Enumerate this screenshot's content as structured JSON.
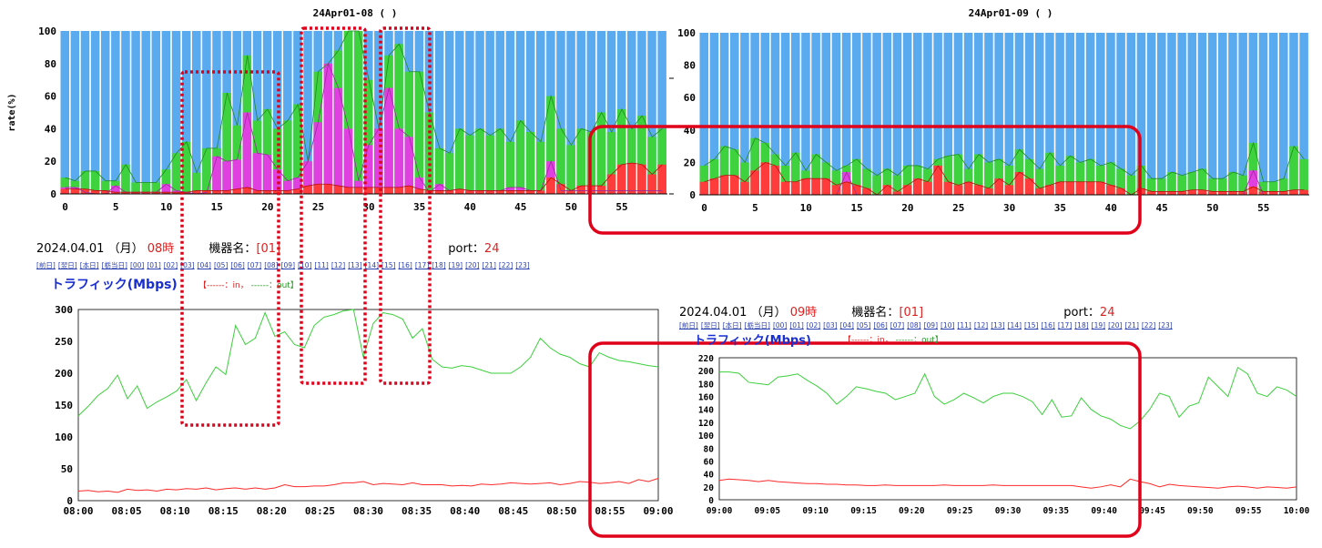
{
  "colors": {
    "in": "#ff3b3b",
    "out": "#3fd23f",
    "mid": "#e040e0",
    "rest": "#5aaaf0",
    "highlight": "#e0001a",
    "label_red": "#e02020"
  },
  "panels": [
    {
      "title": "24Apr01-08 (                )",
      "date": "2024.04.01",
      "weekday": "（月）",
      "hour": "08時",
      "device_label": "機器名：",
      "device": "[01]",
      "port_label": "port：",
      "port": "24",
      "traffic_label": "トラフィック(Mbps)",
      "legend_in": "【------：in，",
      "legend_out": "------：out】",
      "nav": [
        "[前日]",
        "[翌日]",
        "[本日]",
        "[栃当日]",
        "[00]",
        "[01]",
        "[02]",
        "[03]",
        "[04]",
        "[05]",
        "[06]",
        "[07]",
        "[08]",
        "[09]",
        "[10]",
        "[11]",
        "[12]",
        "[13]",
        "[14]",
        "[15]",
        "[16]",
        "[17]",
        "[18]",
        "[19]",
        "[20]",
        "[21]",
        "[22]",
        "[23]"
      ]
    },
    {
      "title": "24Apr01-09 (                )",
      "date": "2024.04.01",
      "weekday": "（月）",
      "hour": "09時",
      "device_label": "機器名：",
      "device": "[01]",
      "port_label": "port：",
      "port": "24",
      "traffic_label": "トラフィック(Mbps)",
      "legend_in": "【------：in，",
      "legend_out": "------：out】",
      "nav": [
        "[前日]",
        "[翌日]",
        "[本日]",
        "[栃当日]",
        "[00]",
        "[01]",
        "[02]",
        "[03]",
        "[04]",
        "[05]",
        "[06]",
        "[07]",
        "[08]",
        "[09]",
        "[10]",
        "[11]",
        "[12]",
        "[13]",
        "[14]",
        "[15]",
        "[16]",
        "[17]",
        "[18]",
        "[19]",
        "[20]",
        "[21]",
        "[22]",
        "[23]"
      ]
    }
  ],
  "chart_data": [
    {
      "type": "bar",
      "title": "24Apr01-08 (                )",
      "ylabel": "rate(%)",
      "ylim": [
        0,
        100
      ],
      "yticks": [
        "0",
        "20",
        "40",
        "60",
        "80",
        "100"
      ],
      "xticks": [
        "0",
        "5",
        "10",
        "15",
        "20",
        "25",
        "30",
        "35",
        "40",
        "45",
        "50",
        "55"
      ],
      "series": [
        {
          "name": "in",
          "values": [
            3,
            3,
            3,
            2,
            2,
            1,
            1,
            1,
            1,
            1,
            1,
            1,
            1,
            2,
            2,
            2,
            2,
            3,
            4,
            2,
            2,
            2,
            2,
            3,
            5,
            6,
            6,
            5,
            4,
            4,
            4,
            4,
            4,
            4,
            5,
            3,
            2,
            2,
            2,
            3,
            2,
            2,
            2,
            2,
            2,
            2,
            2,
            2,
            10,
            6,
            2,
            5,
            5,
            5,
            12,
            18,
            19,
            18,
            12,
            18
          ]
        },
        {
          "name": "mid",
          "values": [
            4,
            4,
            1,
            0,
            0,
            5,
            1,
            1,
            1,
            1,
            6,
            2,
            1,
            0,
            1,
            23,
            20,
            21,
            50,
            25,
            24,
            15,
            8,
            10,
            30,
            44,
            85,
            65,
            40,
            8,
            30,
            40,
            65,
            40,
            35,
            10,
            1,
            6,
            2,
            3,
            2,
            2,
            2,
            2,
            4,
            4,
            2,
            2,
            20,
            2,
            2,
            2,
            2,
            2,
            2,
            2,
            2,
            2,
            2,
            2
          ]
        },
        {
          "name": "out",
          "values": [
            10,
            8,
            14,
            14,
            8,
            8,
            18,
            7,
            7,
            7,
            15,
            25,
            32,
            13,
            28,
            28,
            62,
            42,
            85,
            45,
            52,
            40,
            45,
            55,
            20,
            75,
            80,
            88,
            100,
            100,
            70,
            40,
            85,
            92,
            75,
            75,
            50,
            28,
            25,
            40,
            36,
            40,
            36,
            40,
            32,
            45,
            38,
            32,
            60,
            40,
            30,
            40,
            38,
            50,
            38,
            52,
            40,
            48,
            35,
            40
          ]
        }
      ]
    },
    {
      "type": "bar",
      "title": "24Apr01-09 (                )",
      "ylabel": "",
      "ylim": [
        0,
        100
      ],
      "yticks": [
        "0",
        "20",
        "40",
        "60",
        "80",
        "100"
      ],
      "xticks": [
        "0",
        "5",
        "10",
        "15",
        "20",
        "25",
        "30",
        "35",
        "40",
        "45",
        "50",
        "55"
      ],
      "series": [
        {
          "name": "in",
          "values": [
            8,
            10,
            12,
            12,
            8,
            15,
            20,
            18,
            8,
            8,
            10,
            10,
            10,
            6,
            8,
            6,
            4,
            0,
            6,
            2,
            6,
            10,
            8,
            18,
            8,
            6,
            8,
            6,
            4,
            10,
            6,
            14,
            10,
            4,
            6,
            8,
            8,
            8,
            8,
            8,
            6,
            4,
            0,
            4,
            2,
            2,
            2,
            2,
            3,
            3,
            2,
            2,
            2,
            2,
            5,
            2,
            2,
            2,
            3,
            3
          ]
        },
        {
          "name": "mid",
          "values": [
            0,
            0,
            0,
            0,
            0,
            0,
            0,
            0,
            0,
            0,
            0,
            0,
            0,
            0,
            14,
            0,
            0,
            0,
            0,
            0,
            0,
            0,
            0,
            0,
            0,
            0,
            0,
            0,
            0,
            0,
            0,
            0,
            0,
            0,
            0,
            0,
            0,
            0,
            0,
            0,
            0,
            0,
            0,
            0,
            0,
            0,
            0,
            0,
            0,
            0,
            0,
            0,
            0,
            0,
            15,
            0,
            0,
            0,
            0,
            0
          ]
        },
        {
          "name": "out",
          "values": [
            18,
            22,
            30,
            28,
            20,
            35,
            32,
            25,
            18,
            26,
            15,
            25,
            20,
            15,
            18,
            22,
            16,
            12,
            16,
            12,
            18,
            18,
            16,
            22,
            24,
            25,
            16,
            25,
            20,
            22,
            18,
            28,
            22,
            16,
            26,
            18,
            24,
            20,
            22,
            18,
            20,
            16,
            12,
            18,
            10,
            10,
            14,
            12,
            14,
            16,
            10,
            10,
            14,
            12,
            32,
            8,
            8,
            10,
            30,
            22
          ]
        }
      ]
    },
    {
      "type": "line",
      "title": "",
      "ylabel": "",
      "ylim": [
        0,
        300
      ],
      "yticks": [
        "0",
        "50",
        "100",
        "150",
        "200",
        "250",
        "300"
      ],
      "xticks": [
        "08:00",
        "08:05",
        "08:10",
        "08:15",
        "08:20",
        "08:25",
        "08:30",
        "08:35",
        "08:40",
        "08:45",
        "08:50",
        "08:55",
        "09:00"
      ],
      "series": [
        {
          "name": "in",
          "values": [
            15,
            16,
            14,
            15,
            13,
            18,
            16,
            17,
            15,
            18,
            17,
            19,
            18,
            20,
            17,
            19,
            20,
            18,
            20,
            18,
            20,
            25,
            22,
            22,
            23,
            23,
            25,
            28,
            28,
            30,
            25,
            27,
            26,
            25,
            28,
            25,
            25,
            25,
            23,
            24,
            23,
            26,
            25,
            26,
            28,
            27,
            26,
            27,
            28,
            25,
            27,
            30,
            29,
            27,
            28,
            30,
            27,
            33,
            30,
            35
          ]
        },
        {
          "name": "out",
          "values": [
            133,
            148,
            165,
            176,
            197,
            160,
            180,
            145,
            155,
            163,
            172,
            190,
            157,
            185,
            210,
            198,
            275,
            245,
            255,
            295,
            258,
            265,
            245,
            240,
            275,
            288,
            292,
            298,
            300,
            225,
            278,
            295,
            292,
            285,
            255,
            270,
            222,
            210,
            208,
            212,
            210,
            205,
            200,
            200,
            200,
            210,
            225,
            255,
            240,
            230,
            225,
            215,
            210,
            232,
            225,
            220,
            218,
            215,
            212,
            210
          ]
        }
      ]
    },
    {
      "type": "line",
      "title": "",
      "ylabel": "",
      "ylim": [
        0,
        220
      ],
      "yticks": [
        "0",
        "20",
        "40",
        "60",
        "80",
        "100",
        "120",
        "140",
        "160",
        "180",
        "200",
        "220"
      ],
      "xticks": [
        "09:00",
        "09:05",
        "09:10",
        "09:15",
        "09:20",
        "09:25",
        "09:30",
        "09:35",
        "09:40",
        "09:45",
        "09:50",
        "09:55",
        "10:00"
      ],
      "series": [
        {
          "name": "in",
          "values": [
            30,
            32,
            31,
            30,
            28,
            30,
            28,
            27,
            26,
            25,
            25,
            24,
            24,
            23,
            23,
            22,
            22,
            23,
            22,
            22,
            22,
            22,
            22,
            23,
            22,
            22,
            22,
            22,
            23,
            22,
            22,
            22,
            22,
            22,
            22,
            22,
            22,
            20,
            18,
            20,
            23,
            20,
            32,
            28,
            25,
            20,
            24,
            22,
            21,
            20,
            19,
            18,
            20,
            21,
            20,
            18,
            20,
            19,
            18,
            20
          ]
        },
        {
          "name": "out",
          "values": [
            198,
            198,
            196,
            182,
            180,
            178,
            190,
            192,
            195,
            185,
            176,
            165,
            148,
            160,
            175,
            172,
            168,
            165,
            155,
            160,
            165,
            195,
            160,
            148,
            155,
            165,
            158,
            150,
            160,
            165,
            165,
            160,
            152,
            132,
            155,
            128,
            130,
            158,
            140,
            130,
            125,
            115,
            110,
            122,
            140,
            165,
            160,
            128,
            145,
            150,
            190,
            175,
            160,
            205,
            195,
            165,
            160,
            175,
            170,
            160
          ]
        }
      ]
    }
  ]
}
